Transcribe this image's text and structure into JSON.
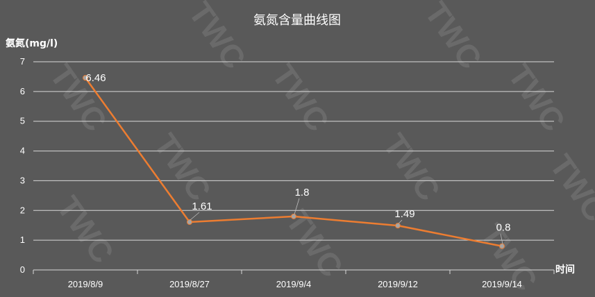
{
  "watermark": "TWC",
  "chart_data": {
    "type": "line",
    "title": "氨氮含量曲线图",
    "ylabel": "氨氮(mg/l)",
    "xlabel": "时间",
    "categories": [
      "2019/8/9",
      "2019/8/27",
      "2019/9/4",
      "2019/9/12",
      "2019/9/14"
    ],
    "values": [
      6.46,
      1.61,
      1.8,
      1.49,
      0.8
    ],
    "data_labels": [
      "6.46",
      "1.61",
      "1.8",
      "1.49",
      "0.8"
    ],
    "ylim": [
      0,
      7
    ],
    "yticks": [
      "0",
      "1",
      "2",
      "3",
      "4",
      "5",
      "6",
      "7"
    ],
    "grid": true,
    "line_color": "#ed7d31",
    "marker_color": "#a5a5a5",
    "grid_color": "#d9d9d9",
    "background": "#595959"
  }
}
